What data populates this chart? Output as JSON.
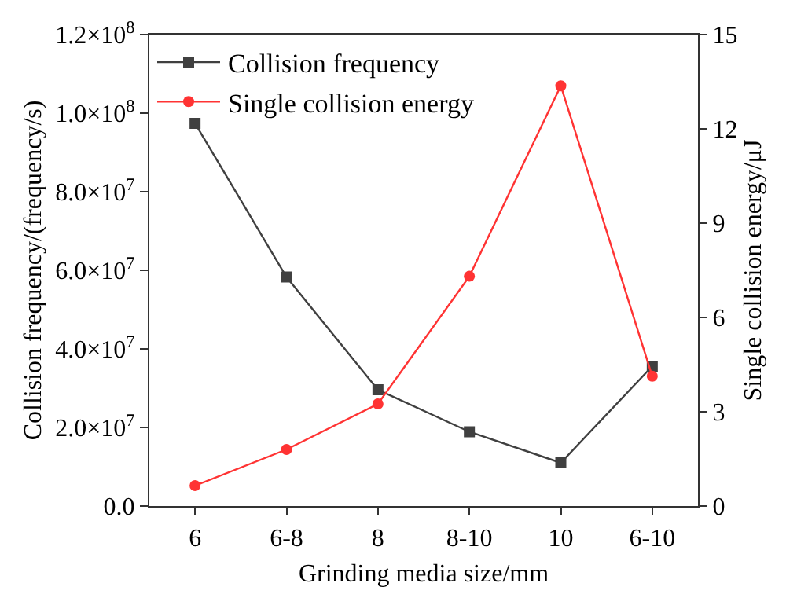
{
  "chart_data": {
    "type": "line",
    "xlabel": "Grinding media size/mm",
    "ylabel": "Collision frequency/(frequency/s)",
    "y2label": "Single collision energy/μJ",
    "categories": [
      "6",
      "6-8",
      "8",
      "8-10",
      "10",
      "6-10"
    ],
    "series": [
      {
        "name": "Collision frequency",
        "color": "#404040",
        "marker": "square",
        "values": [
          97400000,
          58300000,
          29600000,
          18900000,
          11000000,
          35600000
        ]
      },
      {
        "name": "Single collision energy",
        "color": "#ff3333",
        "marker": "circle",
        "axis": "y2",
        "values": [
          0.65,
          1.8,
          3.25,
          7.31,
          13.37,
          4.13
        ]
      }
    ],
    "ylim": [
      0,
      120000000
    ],
    "yticks": [
      {
        "value": 0,
        "label": "0.0"
      },
      {
        "value": 20000000,
        "label": "2.0×10$^{7}$"
      },
      {
        "value": 40000000,
        "label": "4.0×10$^{7}$"
      },
      {
        "value": 60000000,
        "label": "6.0×10$^{7}$"
      },
      {
        "value": 80000000,
        "label": "8.0×10$^{7}$"
      },
      {
        "value": 100000000,
        "label": "1.0×10$^{8}$"
      },
      {
        "value": 120000000,
        "label": "1.2×10$^{8}$"
      }
    ],
    "y2lim": [
      0,
      15
    ],
    "y2ticks": [
      0,
      3,
      6,
      9,
      12,
      15
    ],
    "legend": "top left",
    "line_style": "solid"
  }
}
